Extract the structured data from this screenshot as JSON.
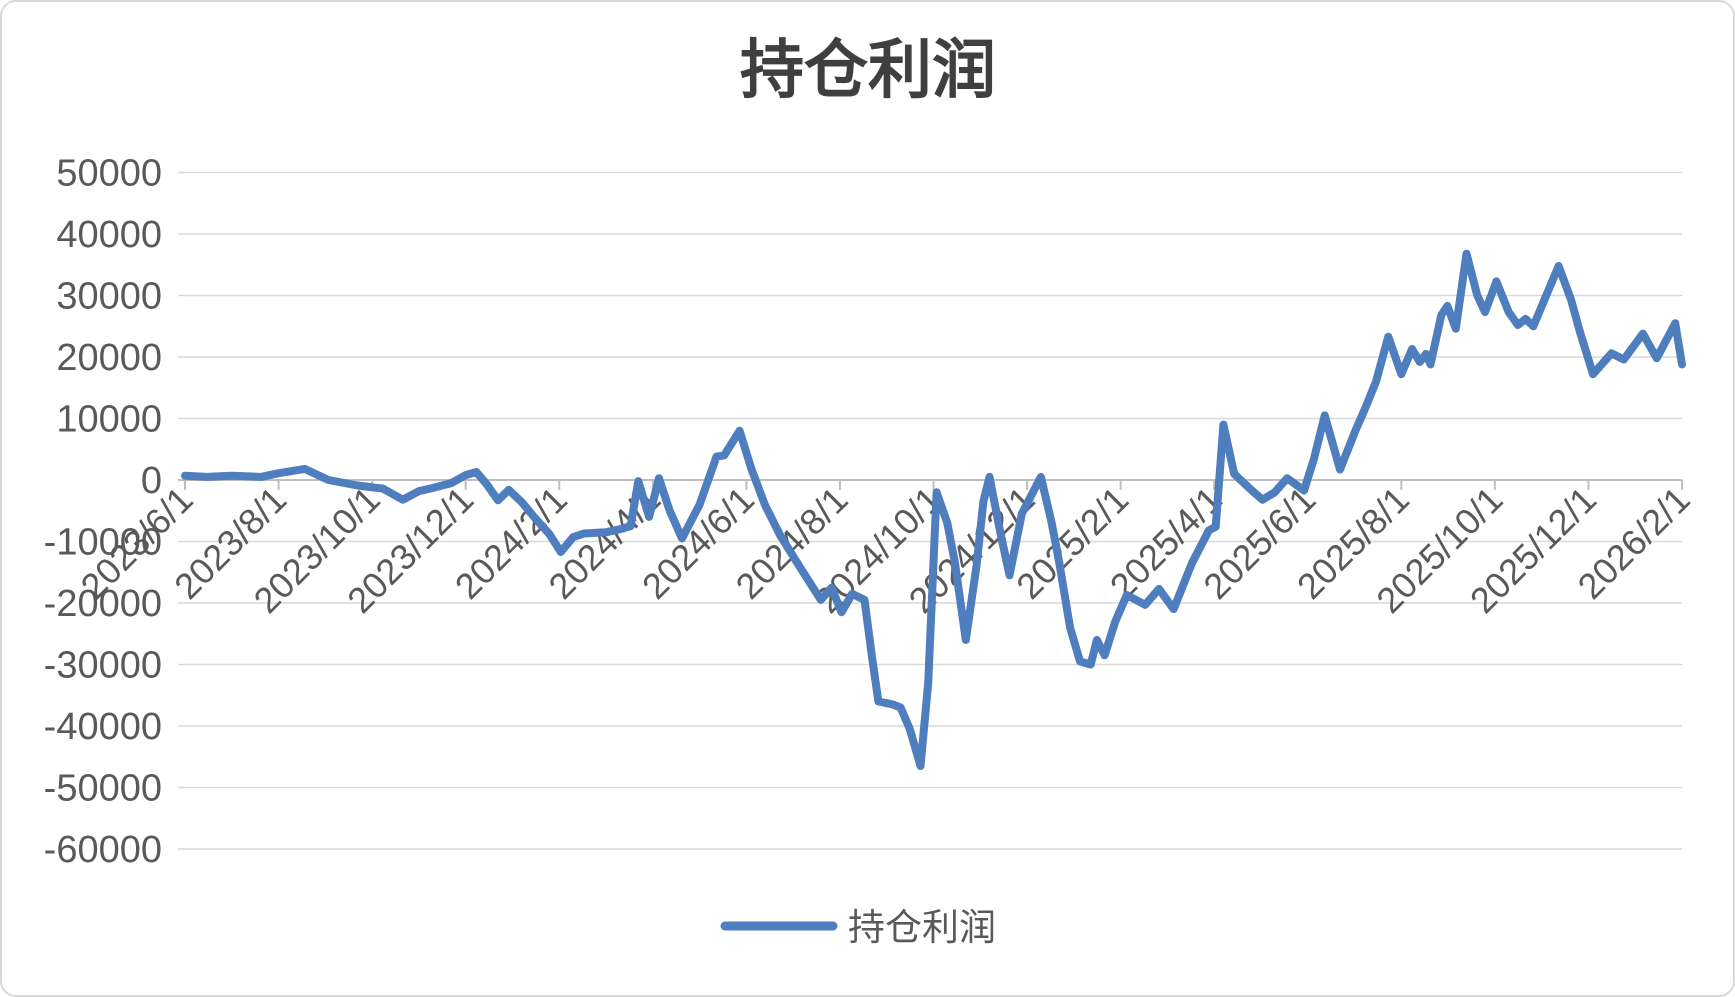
{
  "title": "持仓利润",
  "legend": {
    "label": "持仓利润"
  },
  "colors": {
    "line": "#4e7ebd",
    "grid": "#d9d9d9",
    "axis": "#bfbfbf",
    "tick_label": "#595959",
    "title": "#3f3f3f",
    "border": "#d9d9d9",
    "background": "#ffffff"
  },
  "chart_data": {
    "type": "line",
    "title": "持仓利润",
    "xlabel": "",
    "ylabel": "",
    "grid": true,
    "legend_position": "bottom",
    "ylim": [
      -60000,
      50000
    ],
    "yticks": [
      50000,
      40000,
      30000,
      20000,
      10000,
      0,
      -10000,
      -20000,
      -30000,
      -40000,
      -50000,
      -60000
    ],
    "x_range": [
      "2023/6/1",
      "2026/2/1"
    ],
    "xticks": [
      "2023/6/1",
      "2023/8/1",
      "2023/10/1",
      "2023/12/1",
      "2024/2/1",
      "2024/4/1",
      "2024/6/1",
      "2024/8/1",
      "2024/10/1",
      "2024/12/1",
      "2025/2/1",
      "2025/4/1",
      "2025/6/1",
      "2025/8/1",
      "2025/10/1",
      "2025/12/1",
      "2026/2/1"
    ],
    "series": [
      {
        "name": "持仓利润",
        "points": [
          [
            "2023/6/1",
            700
          ],
          [
            "2023/6/15",
            500
          ],
          [
            "2023/7/1",
            700
          ],
          [
            "2023/7/20",
            500
          ],
          [
            "2023/8/1",
            1100
          ],
          [
            "2023/8/18",
            1800
          ],
          [
            "2023/9/3",
            0
          ],
          [
            "2023/9/22",
            -900
          ],
          [
            "2023/10/8",
            -1400
          ],
          [
            "2023/10/21",
            -3200
          ],
          [
            "2023/11/1",
            -1800
          ],
          [
            "2023/11/10",
            -1300
          ],
          [
            "2023/11/22",
            -500
          ],
          [
            "2023/12/1",
            800
          ],
          [
            "2023/12/8",
            1300
          ],
          [
            "2023/12/15",
            -800
          ],
          [
            "2023/12/22",
            -3300
          ],
          [
            "2023/12/29",
            -1600
          ],
          [
            "2024/1/7",
            -3600
          ],
          [
            "2024/1/15",
            -6000
          ],
          [
            "2024/1/25",
            -8800
          ],
          [
            "2024/2/2",
            -11700
          ],
          [
            "2024/2/10",
            -9300
          ],
          [
            "2024/2/17",
            -8700
          ],
          [
            "2024/3/1",
            -8500
          ],
          [
            "2024/3/10",
            -8000
          ],
          [
            "2024/3/17",
            -7500
          ],
          [
            "2024/3/22",
            -200
          ],
          [
            "2024/3/29",
            -6000
          ],
          [
            "2024/4/5",
            300
          ],
          [
            "2024/4/12",
            -5000
          ],
          [
            "2024/4/20",
            -9500
          ],
          [
            "2024/5/1",
            -4000
          ],
          [
            "2024/5/12",
            3800
          ],
          [
            "2024/5/17",
            4000
          ],
          [
            "2024/5/27",
            8000
          ],
          [
            "2024/6/4",
            2000
          ],
          [
            "2024/6/13",
            -4000
          ],
          [
            "2024/6/23",
            -9000
          ],
          [
            "2024/7/5",
            -14000
          ],
          [
            "2024/7/19",
            -19500
          ],
          [
            "2024/7/26",
            -17500
          ],
          [
            "2024/8/2",
            -21500
          ],
          [
            "2024/8/9",
            -18500
          ],
          [
            "2024/8/17",
            -19500
          ],
          [
            "2024/8/22",
            -29000
          ],
          [
            "2024/8/26",
            -36000
          ],
          [
            "2024/9/5",
            -36500
          ],
          [
            "2024/9/10",
            -37000
          ],
          [
            "2024/9/16",
            -40500
          ],
          [
            "2024/9/23",
            -46500
          ],
          [
            "2024/9/28",
            -33000
          ],
          [
            "2024/10/3",
            -2000
          ],
          [
            "2024/10/10",
            -7000
          ],
          [
            "2024/10/15",
            -13500
          ],
          [
            "2024/10/22",
            -26000
          ],
          [
            "2024/10/29",
            -14000
          ],
          [
            "2024/11/3",
            -3500
          ],
          [
            "2024/11/7",
            500
          ],
          [
            "2024/11/14",
            -8500
          ],
          [
            "2024/11/20",
            -15500
          ],
          [
            "2024/11/28",
            -5500
          ],
          [
            "2024/12/10",
            500
          ],
          [
            "2024/12/17",
            -7000
          ],
          [
            "2024/12/22",
            -13500
          ],
          [
            "2024/12/29",
            -24000
          ],
          [
            "2025/1/5",
            -29500
          ],
          [
            "2025/1/12",
            -30000
          ],
          [
            "2025/1/16",
            -26000
          ],
          [
            "2025/1/21",
            -28500
          ],
          [
            "2025/1/28",
            -23000
          ],
          [
            "2025/2/5",
            -18700
          ],
          [
            "2025/2/17",
            -20300
          ],
          [
            "2025/2/26",
            -17700
          ],
          [
            "2025/3/5",
            -21000
          ],
          [
            "2025/3/17",
            -13500
          ],
          [
            "2025/3/28",
            -8200
          ],
          [
            "2025/4/2",
            -7600
          ],
          [
            "2025/4/7",
            9000
          ],
          [
            "2025/4/14",
            1000
          ],
          [
            "2025/4/25",
            -1600
          ],
          [
            "2025/5/2",
            -3200
          ],
          [
            "2025/5/10",
            -2000
          ],
          [
            "2025/5/18",
            300
          ],
          [
            "2025/5/29",
            -1700
          ],
          [
            "2025/6/5",
            3400
          ],
          [
            "2025/6/12",
            10500
          ],
          [
            "2025/6/22",
            1700
          ],
          [
            "2025/7/2",
            8300
          ],
          [
            "2025/7/8",
            11700
          ],
          [
            "2025/7/15",
            16000
          ],
          [
            "2025/7/23",
            23300
          ],
          [
            "2025/8/1",
            17200
          ],
          [
            "2025/8/8",
            21300
          ],
          [
            "2025/8/13",
            19200
          ],
          [
            "2025/8/17",
            20500
          ],
          [
            "2025/8/20",
            18800
          ],
          [
            "2025/8/27",
            26800
          ],
          [
            "2025/8/31",
            28300
          ],
          [
            "2025/9/6",
            24600
          ],
          [
            "2025/9/13",
            36800
          ],
          [
            "2025/9/20",
            30000
          ],
          [
            "2025/9/25",
            27300
          ],
          [
            "2025/10/2",
            32300
          ],
          [
            "2025/10/10",
            27300
          ],
          [
            "2025/10/16",
            25200
          ],
          [
            "2025/10/21",
            26200
          ],
          [
            "2025/10/26",
            25000
          ],
          [
            "2025/11/12",
            34800
          ],
          [
            "2025/11/20",
            29400
          ],
          [
            "2025/11/26",
            24000
          ],
          [
            "2025/12/4",
            17200
          ],
          [
            "2025/12/16",
            20600
          ],
          [
            "2025/12/24",
            19600
          ],
          [
            "2026/1/6",
            23800
          ],
          [
            "2026/1/15",
            19800
          ],
          [
            "2026/1/27",
            25500
          ],
          [
            "2026/2/1",
            18800
          ]
        ]
      }
    ]
  }
}
